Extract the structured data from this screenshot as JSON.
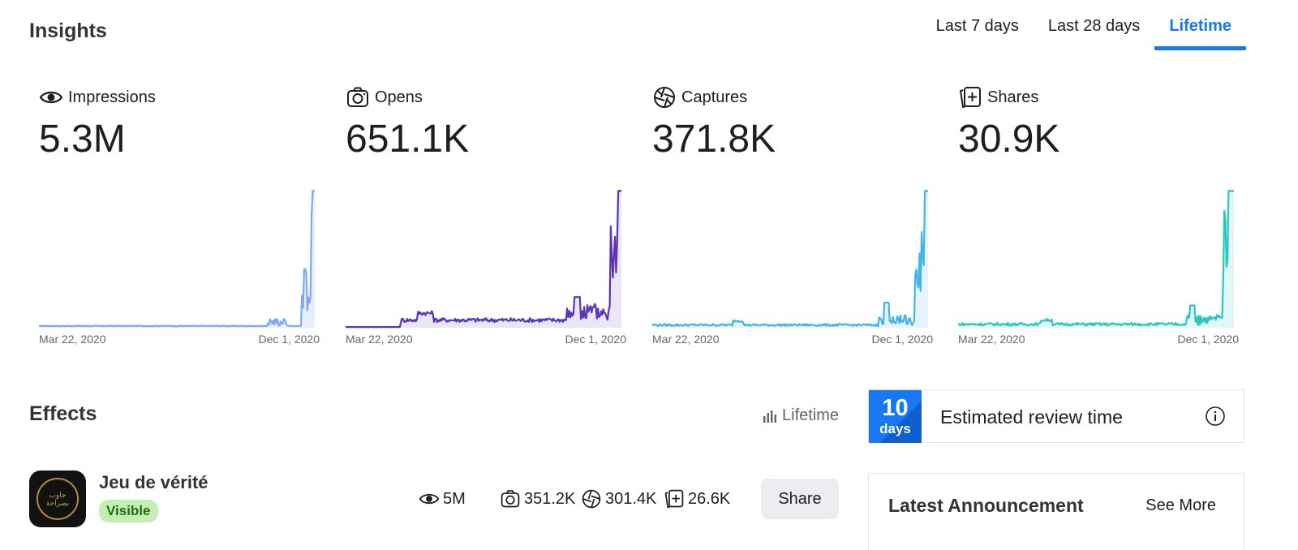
{
  "header": {
    "title": "Insights"
  },
  "range_tabs": [
    {
      "label": "Last 7 days",
      "active": false
    },
    {
      "label": "Last 28 days",
      "active": false
    },
    {
      "label": "Lifetime",
      "active": true
    }
  ],
  "metrics": [
    {
      "icon": "eye-icon",
      "label": "Impressions",
      "value": "5.3M",
      "color": "#7fa8f0",
      "fill": "#e9f0fd",
      "start": "Mar 22, 2020",
      "end": "Dec 1, 2020"
    },
    {
      "icon": "camera-icon",
      "label": "Opens",
      "value": "651.1K",
      "color": "#5a35b8",
      "fill": "#ebe6f7",
      "start": "Mar 22, 2020",
      "end": "Dec 1, 2020"
    },
    {
      "icon": "aperture-icon",
      "label": "Captures",
      "value": "371.8K",
      "color": "#42b4e6",
      "fill": "#e4f4fc",
      "start": "Mar 22, 2020",
      "end": "Dec 1, 2020"
    },
    {
      "icon": "share-card-icon",
      "label": "Shares",
      "value": "30.9K",
      "color": "#2cc6c0",
      "fill": "#e2f8f7",
      "start": "Mar 22, 2020",
      "end": "Dec 1, 2020"
    }
  ],
  "effects": {
    "title": "Effects",
    "period": "Lifetime",
    "items": [
      {
        "name": "Jeu de vérité",
        "status": "Visible",
        "thumb_text": "جاوب بصراحة",
        "impressions": "5M",
        "opens": "351.2K",
        "captures": "301.4K",
        "shares": "26.6K",
        "action": "Share"
      }
    ]
  },
  "review": {
    "number": "10",
    "unit": "days",
    "label": "Estimated review time"
  },
  "announcement": {
    "title": "Latest Announcement",
    "link": "See More"
  },
  "colors": {
    "accent": "#1877f2",
    "visible_badge_bg": "#c3efb5",
    "visible_badge_text": "#236913"
  }
}
